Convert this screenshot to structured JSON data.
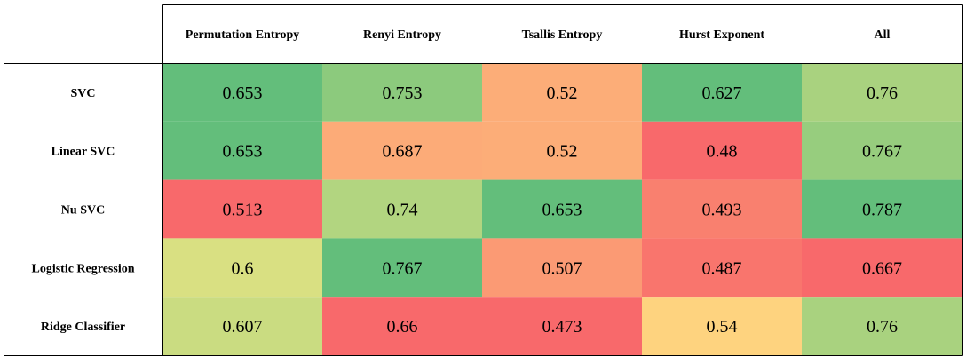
{
  "chart_data": {
    "type": "heatmap",
    "columns": [
      "Permutation Entropy",
      "Renyi Entropy",
      "Tsallis Entropy",
      "Hurst Exponent",
      "All"
    ],
    "rows": [
      "SVC",
      "Linear SVC",
      "Nu SVC",
      "Logistic Regression",
      "Ridge Classifier"
    ],
    "values": [
      [
        0.653,
        0.753,
        0.52,
        0.627,
        0.76
      ],
      [
        0.653,
        0.687,
        0.52,
        0.48,
        0.767
      ],
      [
        0.513,
        0.74,
        0.653,
        0.493,
        0.787
      ],
      [
        0.6,
        0.767,
        0.507,
        0.487,
        0.667
      ],
      [
        0.607,
        0.66,
        0.473,
        0.54,
        0.76
      ]
    ],
    "value_labels": [
      [
        "0.653",
        "0.753",
        "0.52",
        "0.627",
        "0.76"
      ],
      [
        "0.653",
        "0.687",
        "0.52",
        "0.48",
        "0.767"
      ],
      [
        "0.513",
        "0.74",
        "0.653",
        "0.493",
        "0.787"
      ],
      [
        "0.6",
        "0.767",
        "0.507",
        "0.487",
        "0.667"
      ],
      [
        "0.607",
        "0.66",
        "0.473",
        "0.54",
        "0.76"
      ]
    ],
    "color_scale": {
      "low": "#f8696b",
      "mid": "#ffeb84",
      "high": "#63be7b",
      "per": "column"
    }
  }
}
